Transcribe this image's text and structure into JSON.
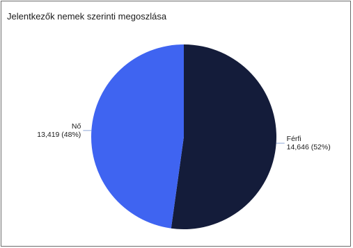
{
  "panel": {
    "title": "Jelentkezők nemek szerinti megoszlása"
  },
  "chart_data": {
    "type": "pie",
    "title": "Jelentkezők nemek szerinti megoszlása",
    "start_angle_deg": 0,
    "direction": "clockwise",
    "slices": [
      {
        "name": "Férfi",
        "value": 14646,
        "value_label": "14,646 (52%)",
        "percent": 52,
        "color": "#141c3a"
      },
      {
        "name": "Nő",
        "value": 13419,
        "value_label": "13,419 (48%)",
        "percent": 48,
        "color": "#3f64f1"
      }
    ]
  }
}
